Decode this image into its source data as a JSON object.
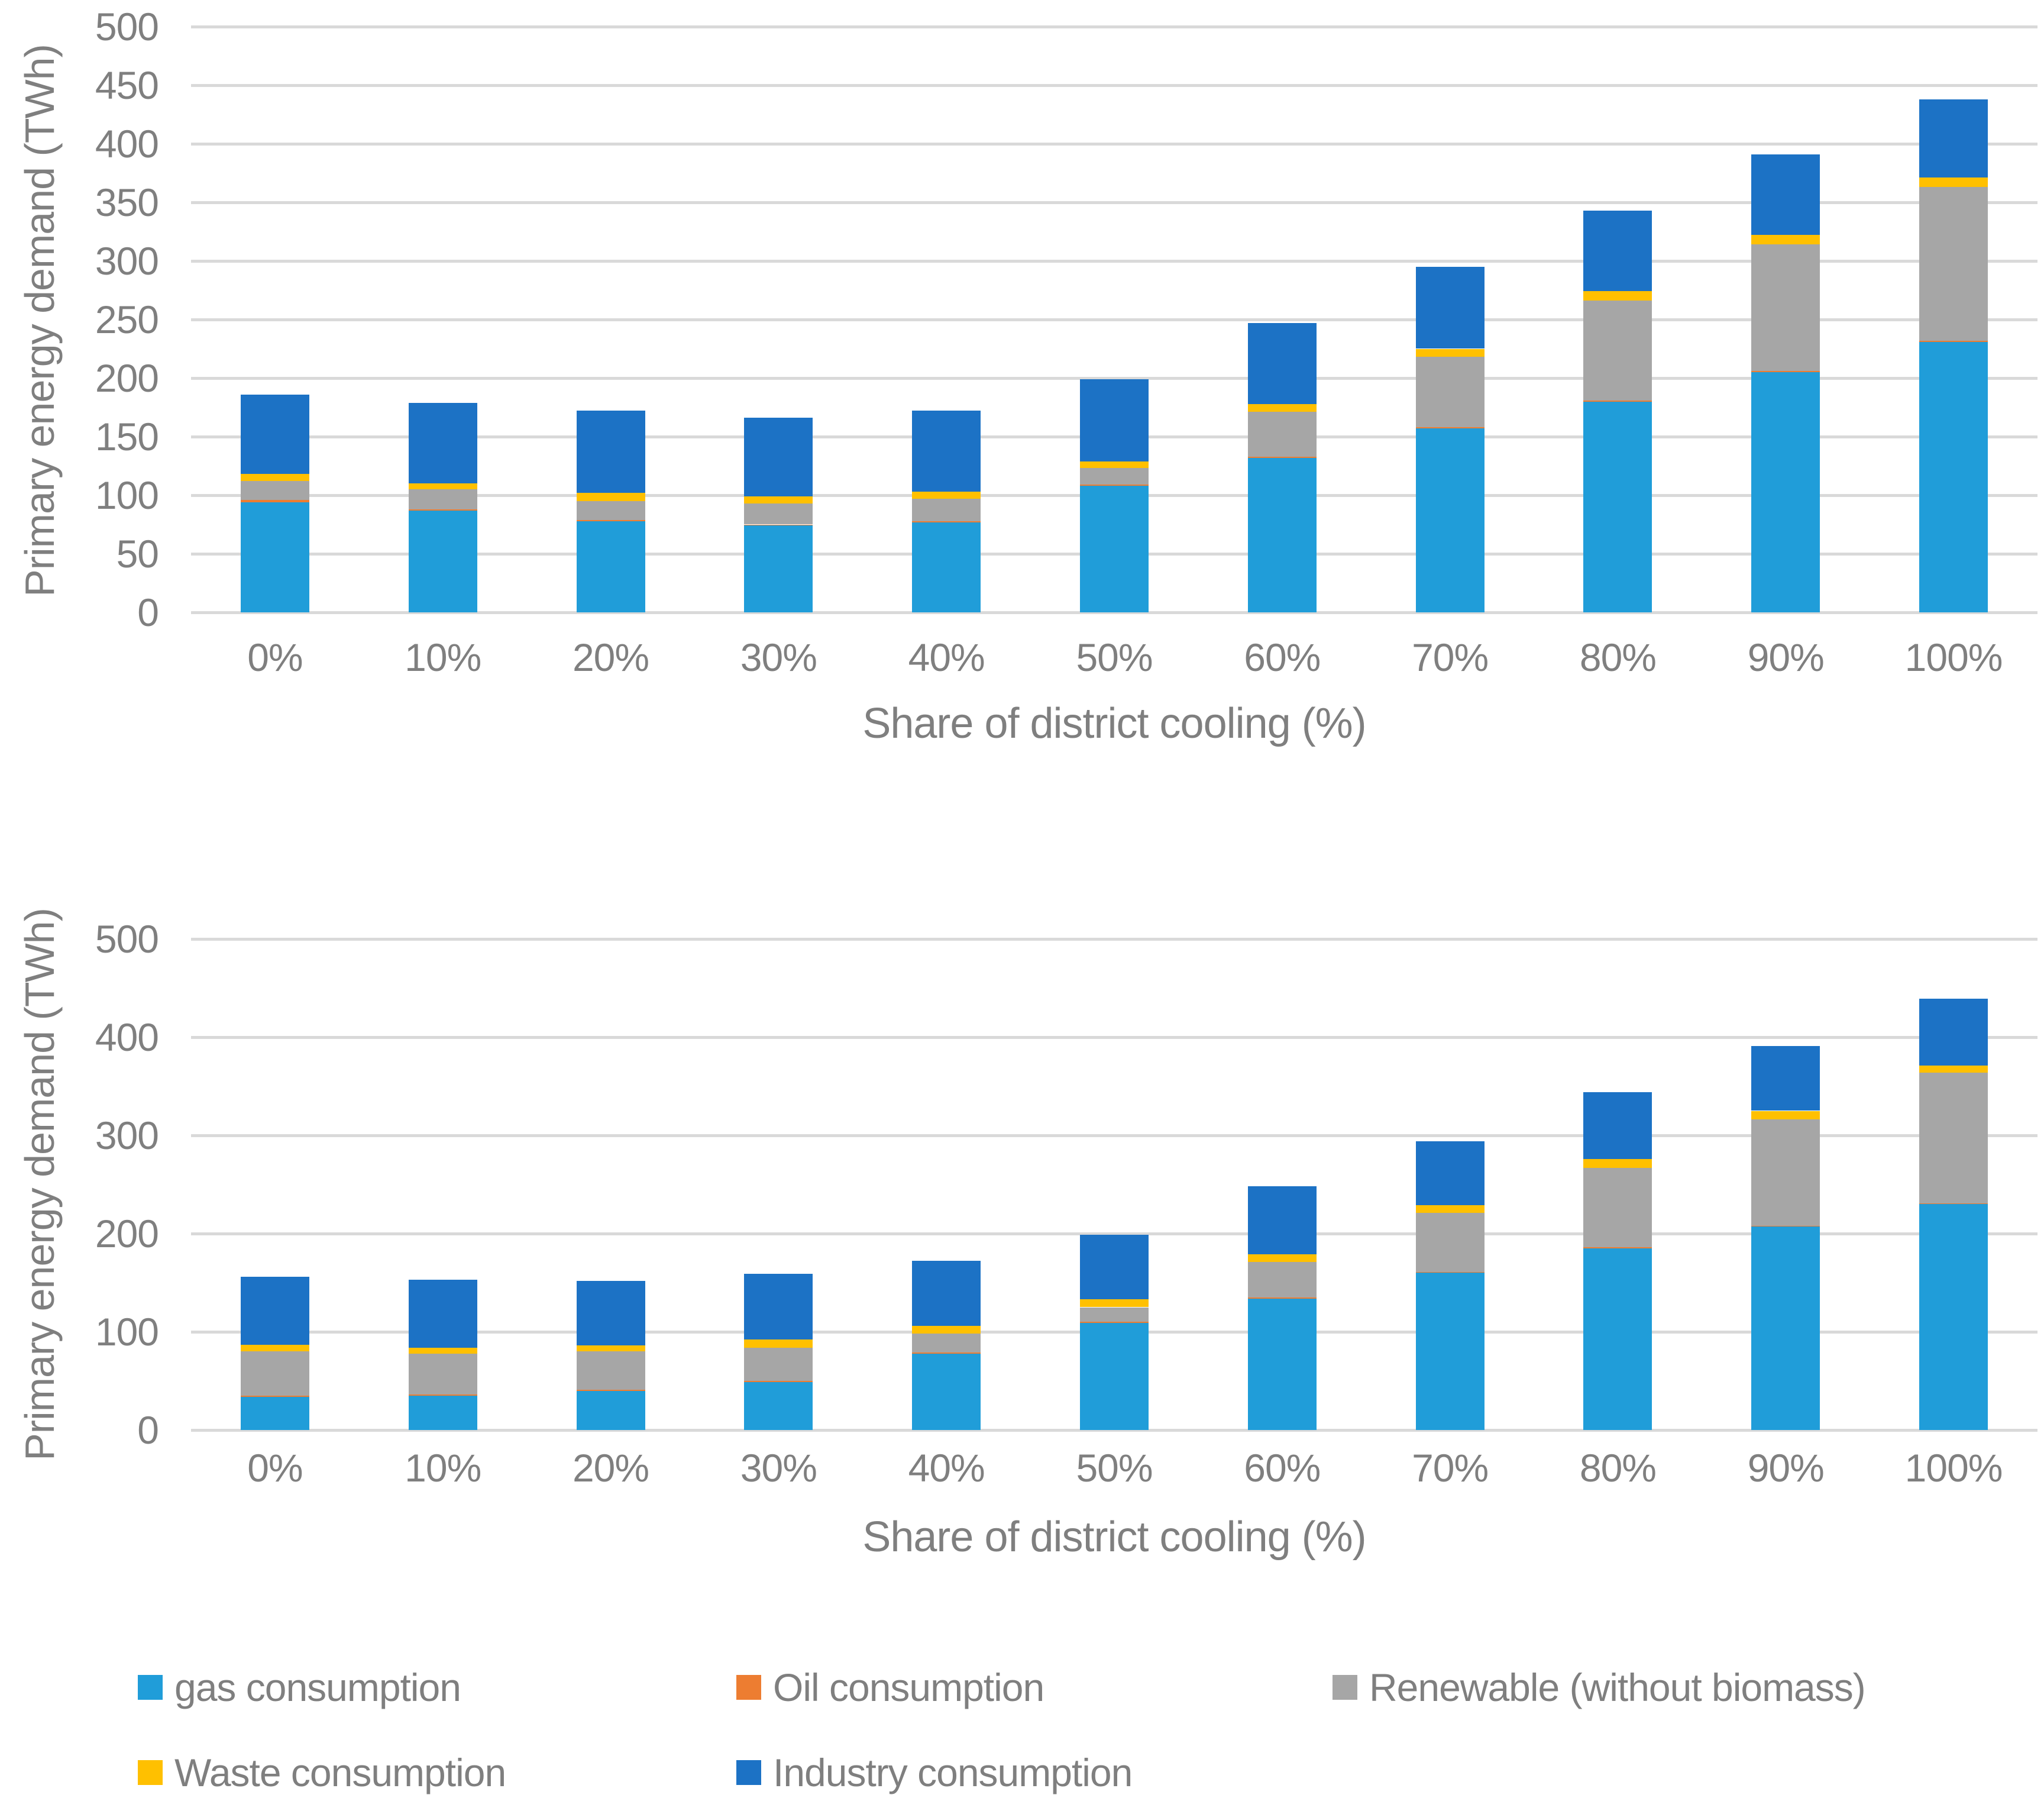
{
  "legend": {
    "items": [
      {
        "label": "gas consumption",
        "color": "#209DD9"
      },
      {
        "label": "Oil consumption",
        "color": "#ED7D31"
      },
      {
        "label": "Renewable (without biomass)",
        "color": "#A6A6A6"
      },
      {
        "label": "Waste consumption",
        "color": "#FFC000"
      },
      {
        "label": "Industry consumption",
        "color": "#1C72C5"
      }
    ]
  },
  "chart_data": [
    {
      "type": "bar",
      "stacked": true,
      "title": "",
      "xlabel": "Share of district cooling (%)",
      "ylabel": "Primary energy demand (TWh)",
      "ylim": [
        0,
        500
      ],
      "ytick_step": 50,
      "grid": true,
      "legend_position": "bottom-shared",
      "categories": [
        "0%",
        "10%",
        "20%",
        "30%",
        "40%",
        "50%",
        "60%",
        "70%",
        "80%",
        "90%",
        "100%"
      ],
      "series": [
        {
          "name": "gas consumption",
          "color": "#209DD9",
          "values": [
            94,
            87,
            78,
            74,
            77,
            108,
            132,
            157,
            180,
            205,
            231
          ]
        },
        {
          "name": "Oil consumption",
          "color": "#ED7D31",
          "values": [
            2,
            1,
            1,
            1,
            1,
            1,
            1,
            1,
            1,
            1,
            1
          ]
        },
        {
          "name": "Renewable (without biomass)",
          "color": "#A6A6A6",
          "values": [
            16,
            17,
            16,
            18,
            19,
            14,
            38,
            60,
            85,
            108,
            131
          ]
        },
        {
          "name": "Waste consumption",
          "color": "#FFC000",
          "values": [
            6,
            5,
            7,
            6,
            6,
            6,
            7,
            7,
            8,
            8,
            8
          ]
        },
        {
          "name": "Industry consumption",
          "color": "#1C72C5",
          "values": [
            68,
            69,
            70,
            67,
            69,
            70,
            69,
            70,
            69,
            69,
            67
          ]
        }
      ],
      "totals": [
        186,
        179,
        172,
        166,
        172,
        199,
        247,
        295,
        343,
        391,
        438
      ]
    },
    {
      "type": "bar",
      "stacked": true,
      "title": "",
      "xlabel": "Share of district cooling (%)",
      "ylabel": "Primary energy demand (TWh)",
      "ylim": [
        0,
        500
      ],
      "ytick_step": 100,
      "grid": true,
      "legend_position": "bottom-shared",
      "categories": [
        "0%",
        "10%",
        "20%",
        "30%",
        "40%",
        "50%",
        "60%",
        "70%",
        "80%",
        "90%",
        "100%"
      ],
      "series": [
        {
          "name": "gas consumption",
          "color": "#209DD9",
          "values": [
            34,
            35,
            40,
            49,
            78,
            109,
            134,
            160,
            185,
            207,
            230
          ]
        },
        {
          "name": "Oil consumption",
          "color": "#ED7D31",
          "values": [
            1,
            1,
            1,
            1,
            1,
            1,
            1,
            1,
            1,
            1,
            1
          ]
        },
        {
          "name": "Renewable (without biomass)",
          "color": "#A6A6A6",
          "values": [
            45,
            42,
            39,
            34,
            19,
            15,
            36,
            60,
            81,
            108,
            133
          ]
        },
        {
          "name": "Waste consumption",
          "color": "#FFC000",
          "values": [
            7,
            6,
            6,
            8,
            8,
            8,
            8,
            8,
            9,
            9,
            7
          ]
        },
        {
          "name": "Industry consumption",
          "color": "#1C72C5",
          "values": [
            69,
            69,
            66,
            67,
            66,
            66,
            69,
            65,
            68,
            66,
            68
          ]
        }
      ],
      "totals": [
        156,
        153,
        152,
        159,
        172,
        199,
        248,
        294,
        344,
        391,
        439
      ]
    }
  ]
}
